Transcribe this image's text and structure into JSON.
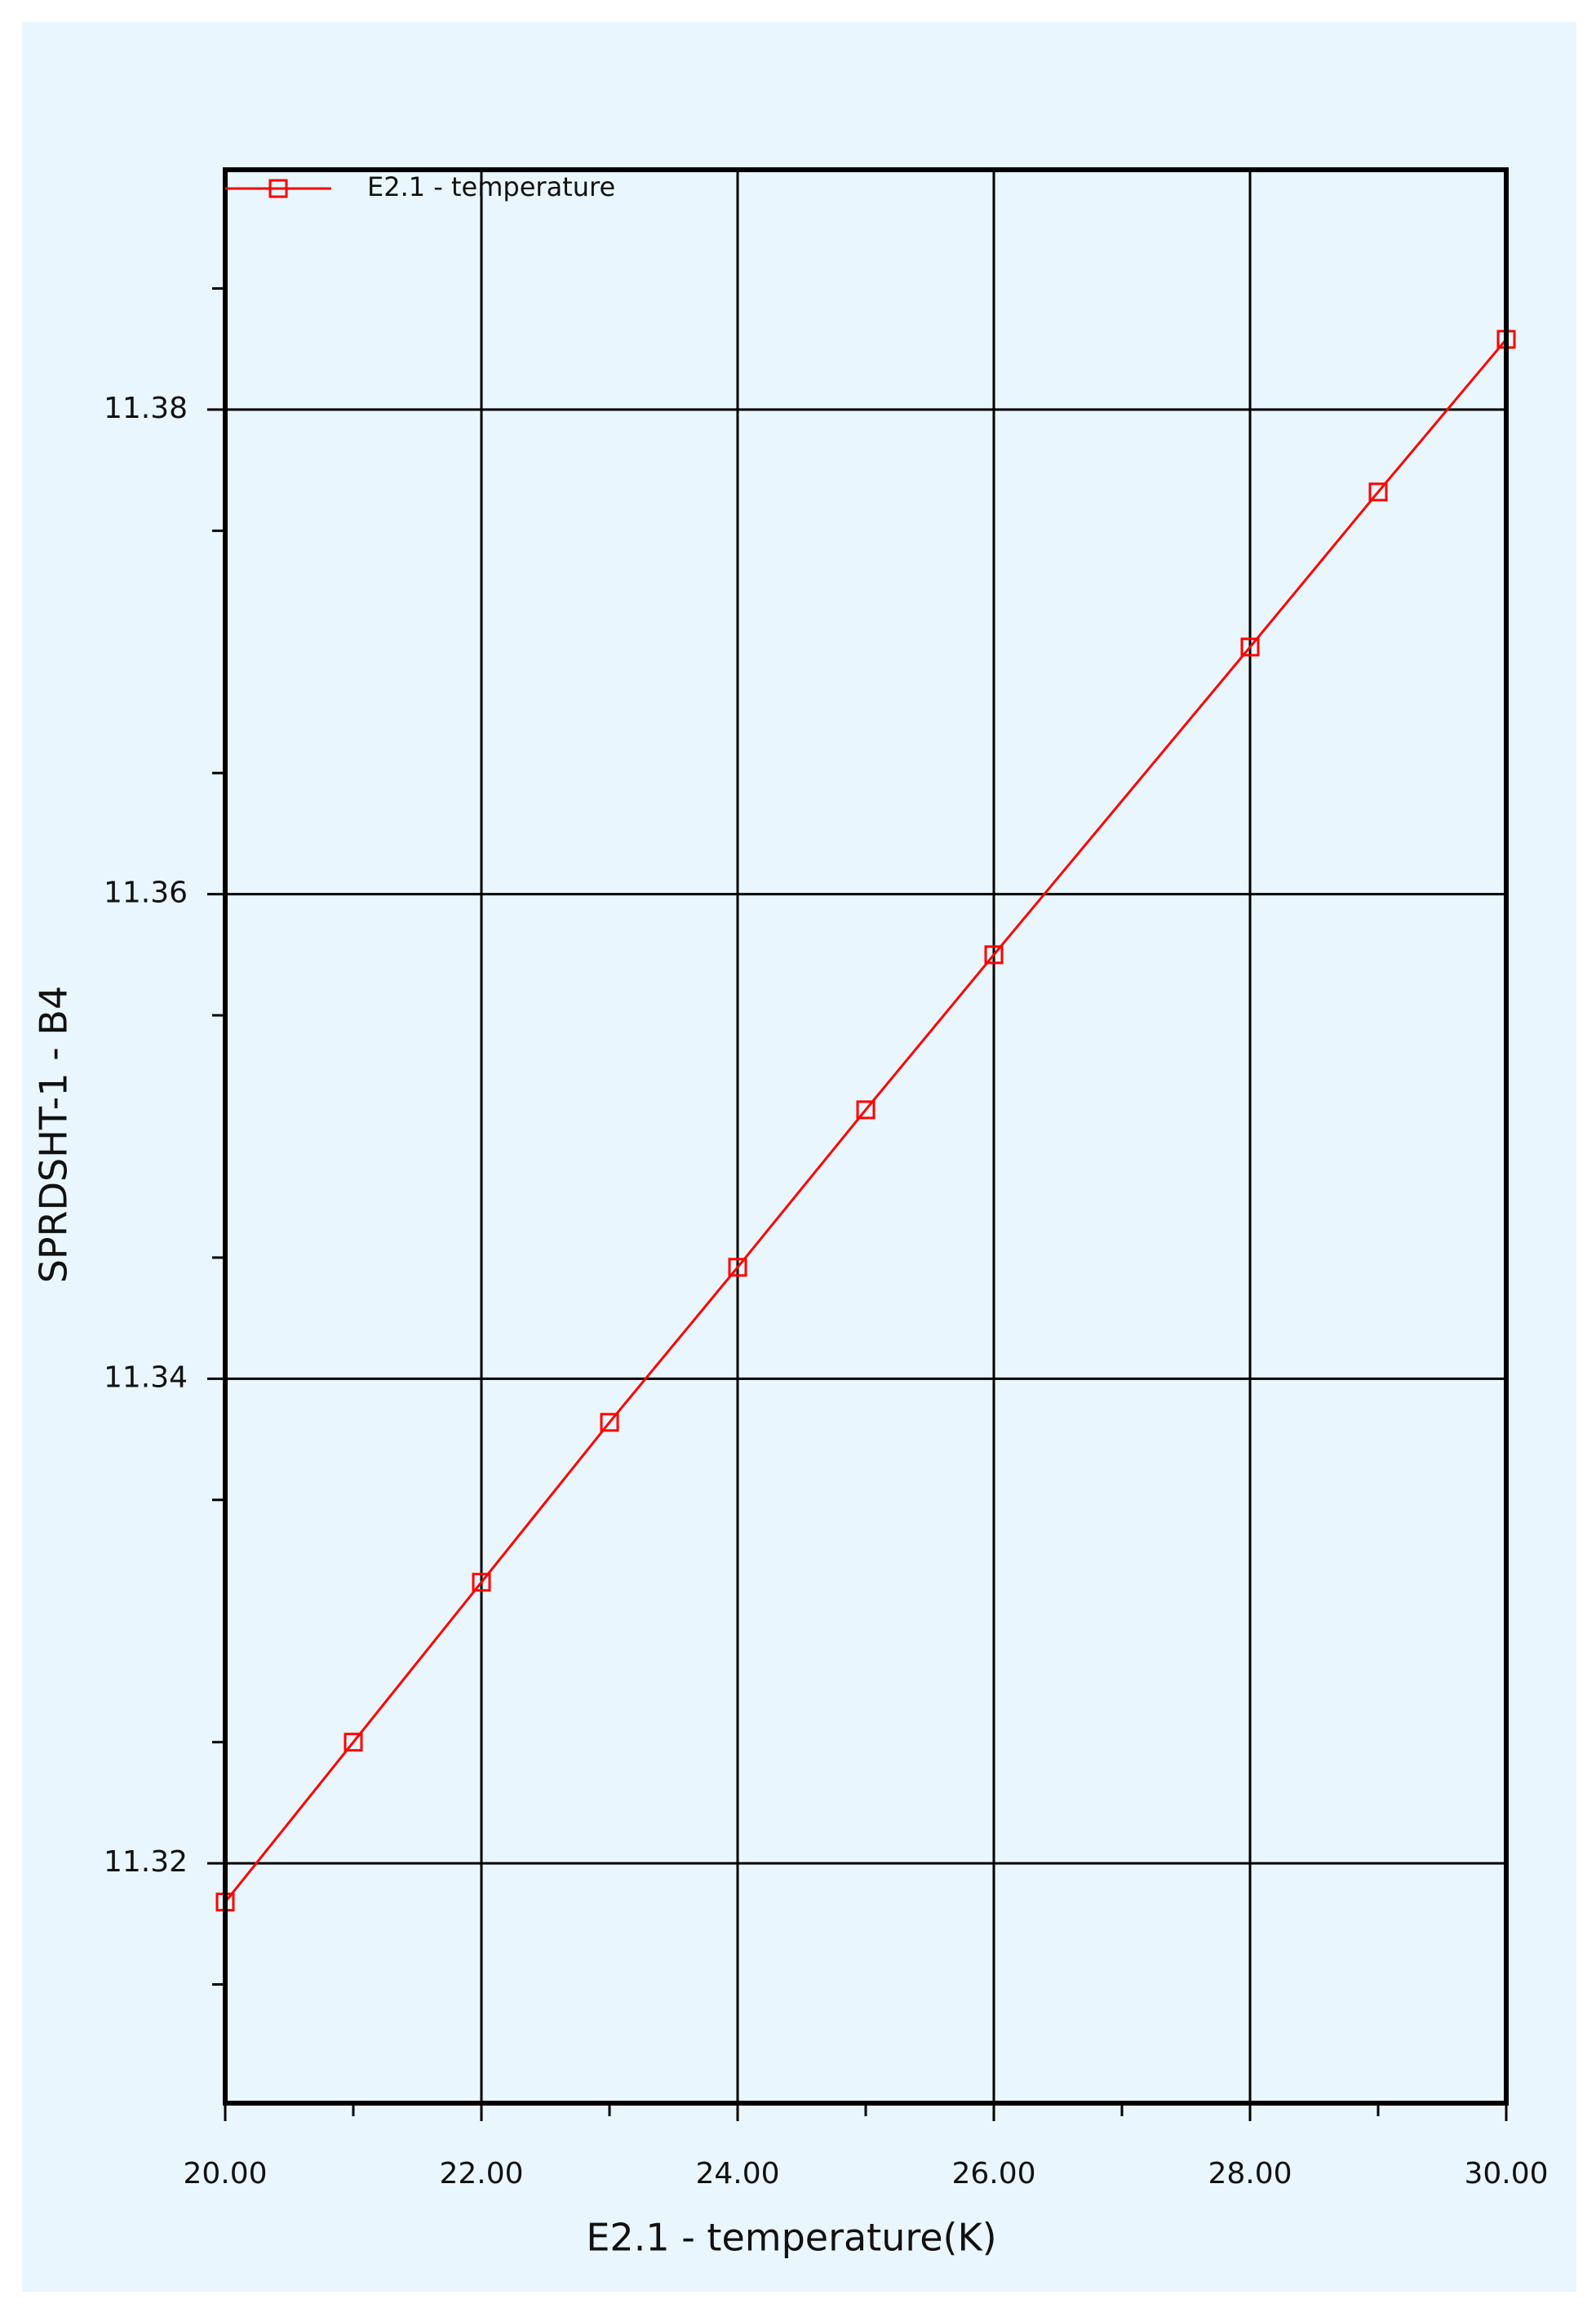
{
  "chart_data": {
    "type": "line",
    "xlabel": "E2.1 - temperature(K)",
    "ylabel": "SPRDSHT-1 - B4",
    "series": [
      {
        "name": "E2.1 - temperature",
        "color": "#ff0000",
        "x": [
          20,
          21,
          22,
          23,
          24,
          25,
          26,
          28,
          29,
          30
        ],
        "values": [
          11.3184,
          11.325,
          11.3316,
          11.3382,
          11.3446,
          11.3511,
          11.3575,
          11.3702,
          11.3766,
          11.3829
        ]
      }
    ],
    "xlim": [
      20,
      30
    ],
    "xticks": [
      {
        "value": 20,
        "label": "20.00"
      },
      {
        "value": 22,
        "label": "22.00"
      },
      {
        "value": 24,
        "label": "24.00"
      },
      {
        "value": 26,
        "label": "26.00"
      },
      {
        "value": 28,
        "label": "28.00"
      },
      {
        "value": 30,
        "label": "30.00"
      }
    ],
    "x_minor_ticks": [
      21,
      23,
      25,
      27,
      29
    ],
    "ylim": [
      11.3101,
      11.3899
    ],
    "yticks": [
      11.32,
      11.34,
      11.36,
      11.38
    ],
    "y_minor_ticks": [
      11.315,
      11.325,
      11.335,
      11.345,
      11.355,
      11.365,
      11.375,
      11.385
    ],
    "grid": true,
    "legend": "top-left"
  }
}
